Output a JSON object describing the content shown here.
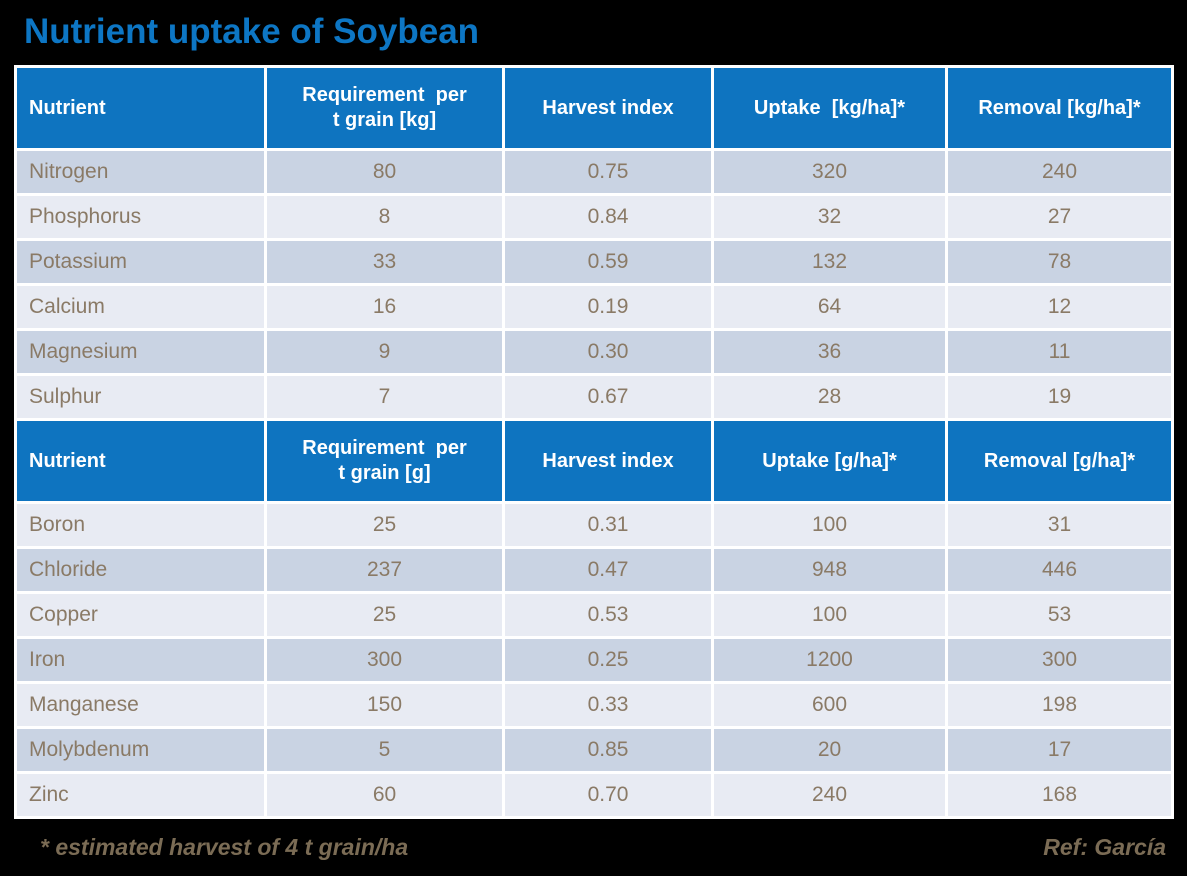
{
  "title": "Nutrient uptake of Soybean",
  "footnote": "* estimated harvest of 4 t grain/ha",
  "reference": "Ref: García",
  "colors": {
    "background": "#000000",
    "title_blue": "#0d76c4",
    "header_blue": "#0e74c0",
    "row_dark": "#c9d3e3",
    "row_light": "#e8ebf3",
    "cell_text": "#8a7a66",
    "footer_text": "#7b6c55",
    "grid_white": "#ffffff"
  },
  "chart_data": [
    {
      "type": "table",
      "columns": [
        "Nutrient",
        "Requirement  per\nt grain [kg]",
        "Harvest index",
        "Uptake  [kg/ha]*",
        "Removal [kg/ha]*"
      ],
      "rows": [
        [
          "Nitrogen",
          "80",
          "0.75",
          "320",
          "240"
        ],
        [
          "Phosphorus",
          "8",
          "0.84",
          "32",
          "27"
        ],
        [
          "Potassium",
          "33",
          "0.59",
          "132",
          "78"
        ],
        [
          "Calcium",
          "16",
          "0.19",
          "64",
          "12"
        ],
        [
          "Magnesium",
          "9",
          "0.30",
          "36",
          "11"
        ],
        [
          "Sulphur",
          "7",
          "0.67",
          "28",
          "19"
        ]
      ]
    },
    {
      "type": "table",
      "columns": [
        "Nutrient",
        "Requirement  per\nt grain [g]",
        "Harvest index",
        "Uptake [g/ha]*",
        "Removal [g/ha]*"
      ],
      "rows": [
        [
          "Boron",
          "25",
          "0.31",
          "100",
          "31"
        ],
        [
          "Chloride",
          "237",
          "0.47",
          "948",
          "446"
        ],
        [
          "Copper",
          "25",
          "0.53",
          "100",
          "53"
        ],
        [
          "Iron",
          "300",
          "0.25",
          "1200",
          "300"
        ],
        [
          "Manganese",
          "150",
          "0.33",
          "600",
          "198"
        ],
        [
          "Molybdenum",
          "5",
          "0.85",
          "20",
          "17"
        ],
        [
          "Zinc",
          "60",
          "0.70",
          "240",
          "168"
        ]
      ]
    }
  ]
}
